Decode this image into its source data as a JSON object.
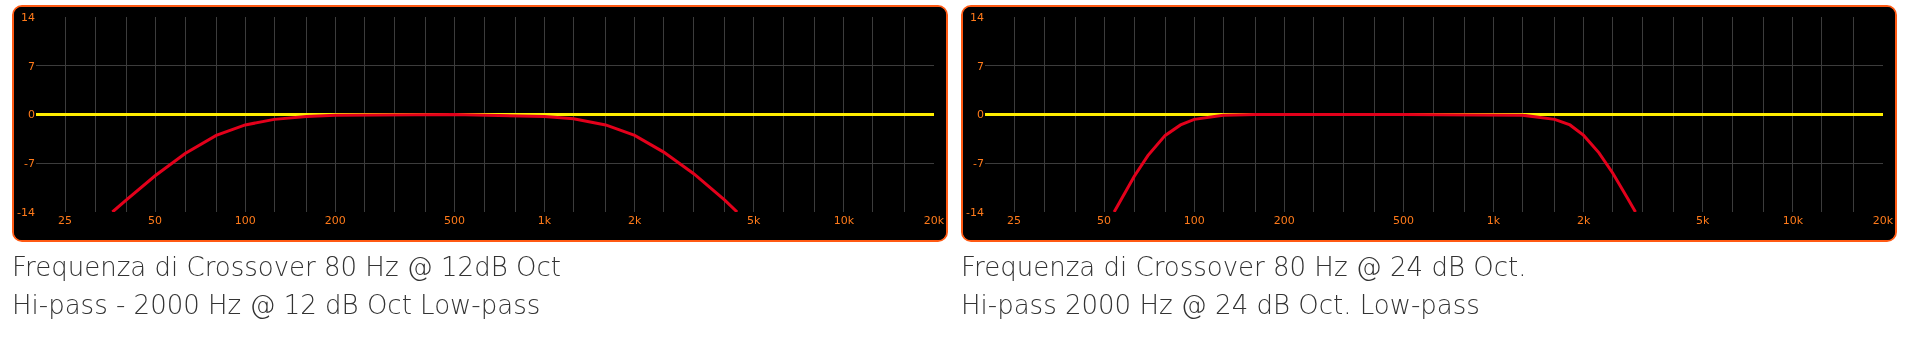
{
  "chart_data": [
    {
      "type": "line",
      "annotations": [
        "Frequenza di Crossover 80 Hz @ 12dB Oct",
        "Hi-pass - 2000 Hz @ 12 dB Oct Low-pass"
      ],
      "log": "x",
      "grid": true,
      "marker": "none",
      "xlim": [
        20,
        20000
      ],
      "ylim": [
        -14,
        14
      ],
      "yticks": [
        -14,
        -7,
        0,
        7,
        14
      ],
      "xticks": [
        25,
        {
          "value": 31.5,
          "label": null
        },
        {
          "value": 40,
          "label": null
        },
        50,
        {
          "value": 63,
          "label": null
        },
        {
          "value": 80,
          "label": null
        },
        100,
        {
          "value": 125,
          "label": null
        },
        {
          "value": 160,
          "label": null
        },
        200,
        {
          "value": 250,
          "label": null
        },
        {
          "value": 315,
          "label": null
        },
        {
          "value": 400,
          "label": null
        },
        500,
        {
          "value": 630,
          "label": null
        },
        {
          "value": 800,
          "label": null
        },
        {
          "value": 1000,
          "label": "1k"
        },
        {
          "value": 1250,
          "label": null
        },
        {
          "value": 1600,
          "label": null
        },
        {
          "value": 2000,
          "label": "2k"
        },
        {
          "value": 2500,
          "label": null
        },
        {
          "value": 3150,
          "label": null
        },
        {
          "value": 4000,
          "label": null
        },
        {
          "value": 5000,
          "label": "5k"
        },
        {
          "value": 6300,
          "label": null
        },
        {
          "value": 8000,
          "label": null
        },
        {
          "value": 10000,
          "label": "10k"
        },
        {
          "value": 12500,
          "label": null
        },
        {
          "value": 16000,
          "label": null
        },
        {
          "value": 20000,
          "label": "20k"
        }
      ],
      "series": [
        {
          "color": "#ffee00",
          "x": [
            20,
            20000
          ],
          "values": [
            0,
            0
          ]
        },
        {
          "color": "#e3001b",
          "x": [
            36,
            40,
            50,
            63,
            80,
            100,
            125,
            160,
            200,
            500,
            1000,
            1250,
            1600,
            2000,
            2500,
            3150,
            4000,
            4400
          ],
          "values": [
            -14,
            -12.3,
            -8.8,
            -5.6,
            -3,
            -1.5,
            -0.7,
            -0.3,
            -0.1,
            0,
            -0.3,
            -0.6,
            -1.5,
            -3,
            -5.4,
            -8.5,
            -12.3,
            -14
          ]
        }
      ]
    },
    {
      "type": "line",
      "annotations": [
        "Frequenza di Crossover 80 Hz @ 24 dB Oct.",
        "Hi-pass 2000 Hz @ 24 dB Oct. Low-pass"
      ],
      "log": "x",
      "grid": true,
      "marker": "none",
      "xlim": [
        20,
        20000
      ],
      "ylim": [
        -14,
        14
      ],
      "yticks": [
        -14,
        -7,
        0,
        7,
        14
      ],
      "xticks": [
        25,
        {
          "value": 31.5,
          "label": null
        },
        {
          "value": 40,
          "label": null
        },
        50,
        {
          "value": 63,
          "label": null
        },
        {
          "value": 80,
          "label": null
        },
        100,
        {
          "value": 125,
          "label": null
        },
        {
          "value": 160,
          "label": null
        },
        200,
        {
          "value": 250,
          "label": null
        },
        {
          "value": 315,
          "label": null
        },
        {
          "value": 400,
          "label": null
        },
        500,
        {
          "value": 630,
          "label": null
        },
        {
          "value": 800,
          "label": null
        },
        {
          "value": 1000,
          "label": "1k"
        },
        {
          "value": 1250,
          "label": null
        },
        {
          "value": 1600,
          "label": null
        },
        {
          "value": 2000,
          "label": "2k"
        },
        {
          "value": 2500,
          "label": null
        },
        {
          "value": 3150,
          "label": null
        },
        {
          "value": 4000,
          "label": null
        },
        {
          "value": 5000,
          "label": "5k"
        },
        {
          "value": 6300,
          "label": null
        },
        {
          "value": 8000,
          "label": null
        },
        {
          "value": 10000,
          "label": "10k"
        },
        {
          "value": 12500,
          "label": null
        },
        {
          "value": 16000,
          "label": null
        },
        {
          "value": 20000,
          "label": "20k"
        }
      ],
      "series": [
        {
          "color": "#ffee00",
          "x": [
            20,
            20000
          ],
          "values": [
            0,
            0
          ]
        },
        {
          "color": "#e3001b",
          "x": [
            54,
            63,
            70,
            80,
            90,
            100,
            125,
            160,
            500,
            1250,
            1600,
            1800,
            2000,
            2250,
            2500,
            2800,
            2980
          ],
          "values": [
            -14,
            -8.9,
            -5.9,
            -3,
            -1.5,
            -0.7,
            -0.1,
            0,
            0,
            -0.1,
            -0.7,
            -1.5,
            -3,
            -5.5,
            -8.4,
            -12,
            -14
          ]
        }
      ]
    }
  ]
}
